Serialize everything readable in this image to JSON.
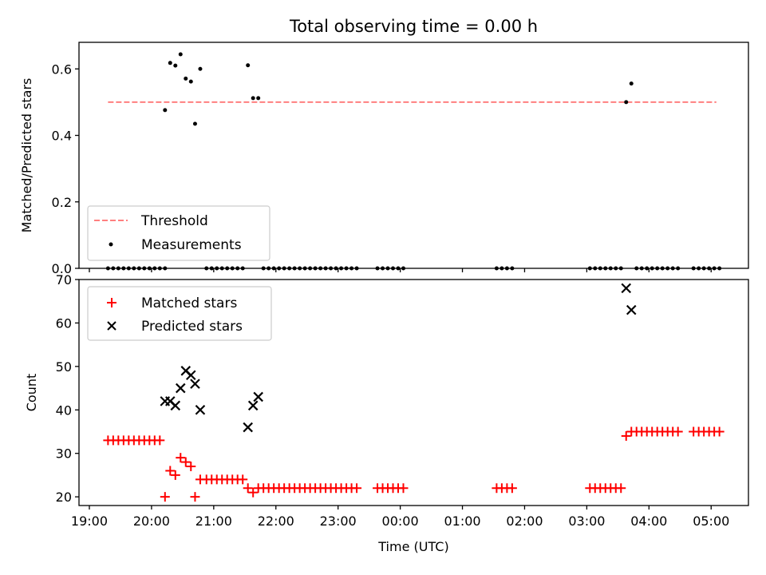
{
  "chart_data": [
    {
      "type": "scatter",
      "title": "Total observing time = 0.00 h",
      "xlabel": "",
      "ylabel": "Matched/Predicted stars",
      "xlim": [
        "18:50",
        "05:36"
      ],
      "ylim": [
        0,
        0.68
      ],
      "yticks": [
        0.0,
        0.2,
        0.4,
        0.6
      ],
      "ytick_labels": [
        "0.0",
        "0.2",
        "0.4",
        "0.6"
      ],
      "x_unit": "time of day (UTC)",
      "legend_position": "lower-left",
      "threshold": {
        "name": "Threshold",
        "value": 0.5,
        "x_range": [
          "19:18",
          "05:05"
        ],
        "color": "#ff7f7f",
        "style": "dashed"
      },
      "series": [
        {
          "name": "Measurements",
          "marker": "dot",
          "color": "#000000",
          "points": [
            {
              "x": "19:18",
              "y": 0
            },
            {
              "x": "19:23",
              "y": 0
            },
            {
              "x": "19:28",
              "y": 0
            },
            {
              "x": "19:33",
              "y": 0
            },
            {
              "x": "19:38",
              "y": 0
            },
            {
              "x": "19:43",
              "y": 0
            },
            {
              "x": "19:48",
              "y": 0
            },
            {
              "x": "19:53",
              "y": 0
            },
            {
              "x": "19:58",
              "y": 0
            },
            {
              "x": "20:03",
              "y": 0
            },
            {
              "x": "20:08",
              "y": 0
            },
            {
              "x": "20:13",
              "y": 0
            },
            {
              "x": "20:13",
              "y": 0.476
            },
            {
              "x": "20:18",
              "y": 0.618
            },
            {
              "x": "20:23",
              "y": 0.61
            },
            {
              "x": "20:28",
              "y": 0.644
            },
            {
              "x": "20:33",
              "y": 0.571
            },
            {
              "x": "20:38",
              "y": 0.562
            },
            {
              "x": "20:42",
              "y": 0.435
            },
            {
              "x": "20:47",
              "y": 0.6
            },
            {
              "x": "20:53",
              "y": 0
            },
            {
              "x": "20:58",
              "y": 0
            },
            {
              "x": "21:03",
              "y": 0
            },
            {
              "x": "21:08",
              "y": 0
            },
            {
              "x": "21:13",
              "y": 0
            },
            {
              "x": "21:18",
              "y": 0
            },
            {
              "x": "21:23",
              "y": 0
            },
            {
              "x": "21:28",
              "y": 0
            },
            {
              "x": "21:33",
              "y": 0.611
            },
            {
              "x": "21:38",
              "y": 0.512
            },
            {
              "x": "21:43",
              "y": 0.512
            },
            {
              "x": "21:48",
              "y": 0
            },
            {
              "x": "21:53",
              "y": 0
            },
            {
              "x": "21:58",
              "y": 0
            },
            {
              "x": "22:03",
              "y": 0
            },
            {
              "x": "22:08",
              "y": 0
            },
            {
              "x": "22:13",
              "y": 0
            },
            {
              "x": "22:18",
              "y": 0
            },
            {
              "x": "22:23",
              "y": 0
            },
            {
              "x": "22:28",
              "y": 0
            },
            {
              "x": "22:33",
              "y": 0
            },
            {
              "x": "22:38",
              "y": 0
            },
            {
              "x": "22:43",
              "y": 0
            },
            {
              "x": "22:48",
              "y": 0
            },
            {
              "x": "22:53",
              "y": 0
            },
            {
              "x": "22:58",
              "y": 0
            },
            {
              "x": "23:03",
              "y": 0
            },
            {
              "x": "23:08",
              "y": 0
            },
            {
              "x": "23:13",
              "y": 0
            },
            {
              "x": "23:18",
              "y": 0
            },
            {
              "x": "23:38",
              "y": 0
            },
            {
              "x": "23:43",
              "y": 0
            },
            {
              "x": "23:48",
              "y": 0
            },
            {
              "x": "23:53",
              "y": 0
            },
            {
              "x": "23:58",
              "y": 0
            },
            {
              "x": "00:03",
              "y": 0
            },
            {
              "x": "01:33",
              "y": 0
            },
            {
              "x": "01:38",
              "y": 0
            },
            {
              "x": "01:43",
              "y": 0
            },
            {
              "x": "01:48",
              "y": 0
            },
            {
              "x": "03:03",
              "y": 0
            },
            {
              "x": "03:08",
              "y": 0
            },
            {
              "x": "03:13",
              "y": 0
            },
            {
              "x": "03:18",
              "y": 0
            },
            {
              "x": "03:23",
              "y": 0
            },
            {
              "x": "03:28",
              "y": 0
            },
            {
              "x": "03:33",
              "y": 0
            },
            {
              "x": "03:38",
              "y": 0.5
            },
            {
              "x": "03:43",
              "y": 0.556
            },
            {
              "x": "03:48",
              "y": 0
            },
            {
              "x": "03:53",
              "y": 0
            },
            {
              "x": "03:58",
              "y": 0
            },
            {
              "x": "04:03",
              "y": 0
            },
            {
              "x": "04:08",
              "y": 0
            },
            {
              "x": "04:13",
              "y": 0
            },
            {
              "x": "04:18",
              "y": 0
            },
            {
              "x": "04:23",
              "y": 0
            },
            {
              "x": "04:28",
              "y": 0
            },
            {
              "x": "04:43",
              "y": 0
            },
            {
              "x": "04:48",
              "y": 0
            },
            {
              "x": "04:53",
              "y": 0
            },
            {
              "x": "04:58",
              "y": 0
            },
            {
              "x": "05:03",
              "y": 0
            },
            {
              "x": "05:08",
              "y": 0
            }
          ]
        }
      ]
    },
    {
      "type": "scatter",
      "title": "",
      "xlabel": "Time (UTC)",
      "ylabel": "Count",
      "xlim": [
        "18:50",
        "05:36"
      ],
      "ylim": [
        18,
        70
      ],
      "yticks": [
        20,
        30,
        40,
        50,
        60,
        70
      ],
      "ytick_labels": [
        "20",
        "30",
        "40",
        "50",
        "60",
        "70"
      ],
      "xticks": [
        "19:00",
        "20:00",
        "21:00",
        "22:00",
        "23:00",
        "00:00",
        "01:00",
        "02:00",
        "03:00",
        "04:00",
        "05:00"
      ],
      "xtick_labels": [
        "19:00",
        "20:00",
        "21:00",
        "22:00",
        "23:00",
        "00:00",
        "01:00",
        "02:00",
        "03:00",
        "04:00",
        "05:00"
      ],
      "x_unit": "time of day (UTC)",
      "legend_position": "upper-left",
      "series": [
        {
          "name": "Matched stars",
          "marker": "plus",
          "color": "#ff0000",
          "points": [
            {
              "x": "19:18",
              "y": 33
            },
            {
              "x": "19:23",
              "y": 33
            },
            {
              "x": "19:28",
              "y": 33
            },
            {
              "x": "19:33",
              "y": 33
            },
            {
              "x": "19:38",
              "y": 33
            },
            {
              "x": "19:43",
              "y": 33
            },
            {
              "x": "19:48",
              "y": 33
            },
            {
              "x": "19:53",
              "y": 33
            },
            {
              "x": "19:58",
              "y": 33
            },
            {
              "x": "20:03",
              "y": 33
            },
            {
              "x": "20:08",
              "y": 33
            },
            {
              "x": "20:13",
              "y": 20
            },
            {
              "x": "20:18",
              "y": 26
            },
            {
              "x": "20:23",
              "y": 25
            },
            {
              "x": "20:28",
              "y": 29
            },
            {
              "x": "20:33",
              "y": 28
            },
            {
              "x": "20:38",
              "y": 27
            },
            {
              "x": "20:42",
              "y": 20
            },
            {
              "x": "20:47",
              "y": 24
            },
            {
              "x": "20:53",
              "y": 24
            },
            {
              "x": "20:58",
              "y": 24
            },
            {
              "x": "21:03",
              "y": 24
            },
            {
              "x": "21:08",
              "y": 24
            },
            {
              "x": "21:13",
              "y": 24
            },
            {
              "x": "21:18",
              "y": 24
            },
            {
              "x": "21:23",
              "y": 24
            },
            {
              "x": "21:28",
              "y": 24
            },
            {
              "x": "21:33",
              "y": 22
            },
            {
              "x": "21:38",
              "y": 21
            },
            {
              "x": "21:43",
              "y": 22
            },
            {
              "x": "21:48",
              "y": 22
            },
            {
              "x": "21:53",
              "y": 22
            },
            {
              "x": "21:58",
              "y": 22
            },
            {
              "x": "22:03",
              "y": 22
            },
            {
              "x": "22:08",
              "y": 22
            },
            {
              "x": "22:13",
              "y": 22
            },
            {
              "x": "22:18",
              "y": 22
            },
            {
              "x": "22:23",
              "y": 22
            },
            {
              "x": "22:28",
              "y": 22
            },
            {
              "x": "22:33",
              "y": 22
            },
            {
              "x": "22:38",
              "y": 22
            },
            {
              "x": "22:43",
              "y": 22
            },
            {
              "x": "22:48",
              "y": 22
            },
            {
              "x": "22:53",
              "y": 22
            },
            {
              "x": "22:58",
              "y": 22
            },
            {
              "x": "23:03",
              "y": 22
            },
            {
              "x": "23:08",
              "y": 22
            },
            {
              "x": "23:13",
              "y": 22
            },
            {
              "x": "23:18",
              "y": 22
            },
            {
              "x": "23:38",
              "y": 22
            },
            {
              "x": "23:43",
              "y": 22
            },
            {
              "x": "23:48",
              "y": 22
            },
            {
              "x": "23:53",
              "y": 22
            },
            {
              "x": "23:58",
              "y": 22
            },
            {
              "x": "00:03",
              "y": 22
            },
            {
              "x": "01:33",
              "y": 22
            },
            {
              "x": "01:38",
              "y": 22
            },
            {
              "x": "01:43",
              "y": 22
            },
            {
              "x": "01:48",
              "y": 22
            },
            {
              "x": "03:03",
              "y": 22
            },
            {
              "x": "03:08",
              "y": 22
            },
            {
              "x": "03:13",
              "y": 22
            },
            {
              "x": "03:18",
              "y": 22
            },
            {
              "x": "03:23",
              "y": 22
            },
            {
              "x": "03:28",
              "y": 22
            },
            {
              "x": "03:33",
              "y": 22
            },
            {
              "x": "03:38",
              "y": 34
            },
            {
              "x": "03:43",
              "y": 35
            },
            {
              "x": "03:48",
              "y": 35
            },
            {
              "x": "03:53",
              "y": 35
            },
            {
              "x": "03:58",
              "y": 35
            },
            {
              "x": "04:03",
              "y": 35
            },
            {
              "x": "04:08",
              "y": 35
            },
            {
              "x": "04:13",
              "y": 35
            },
            {
              "x": "04:18",
              "y": 35
            },
            {
              "x": "04:23",
              "y": 35
            },
            {
              "x": "04:28",
              "y": 35
            },
            {
              "x": "04:43",
              "y": 35
            },
            {
              "x": "04:48",
              "y": 35
            },
            {
              "x": "04:53",
              "y": 35
            },
            {
              "x": "04:58",
              "y": 35
            },
            {
              "x": "05:03",
              "y": 35
            },
            {
              "x": "05:08",
              "y": 35
            }
          ]
        },
        {
          "name": "Predicted stars",
          "marker": "x",
          "color": "#000000",
          "points": [
            {
              "x": "20:13",
              "y": 42
            },
            {
              "x": "20:18",
              "y": 42
            },
            {
              "x": "20:23",
              "y": 41
            },
            {
              "x": "20:28",
              "y": 45
            },
            {
              "x": "20:33",
              "y": 49
            },
            {
              "x": "20:38",
              "y": 48
            },
            {
              "x": "20:42",
              "y": 46
            },
            {
              "x": "20:47",
              "y": 40
            },
            {
              "x": "21:33",
              "y": 36
            },
            {
              "x": "21:38",
              "y": 41
            },
            {
              "x": "21:43",
              "y": 43
            },
            {
              "x": "03:38",
              "y": 68
            },
            {
              "x": "03:43",
              "y": 63
            }
          ]
        }
      ]
    }
  ]
}
